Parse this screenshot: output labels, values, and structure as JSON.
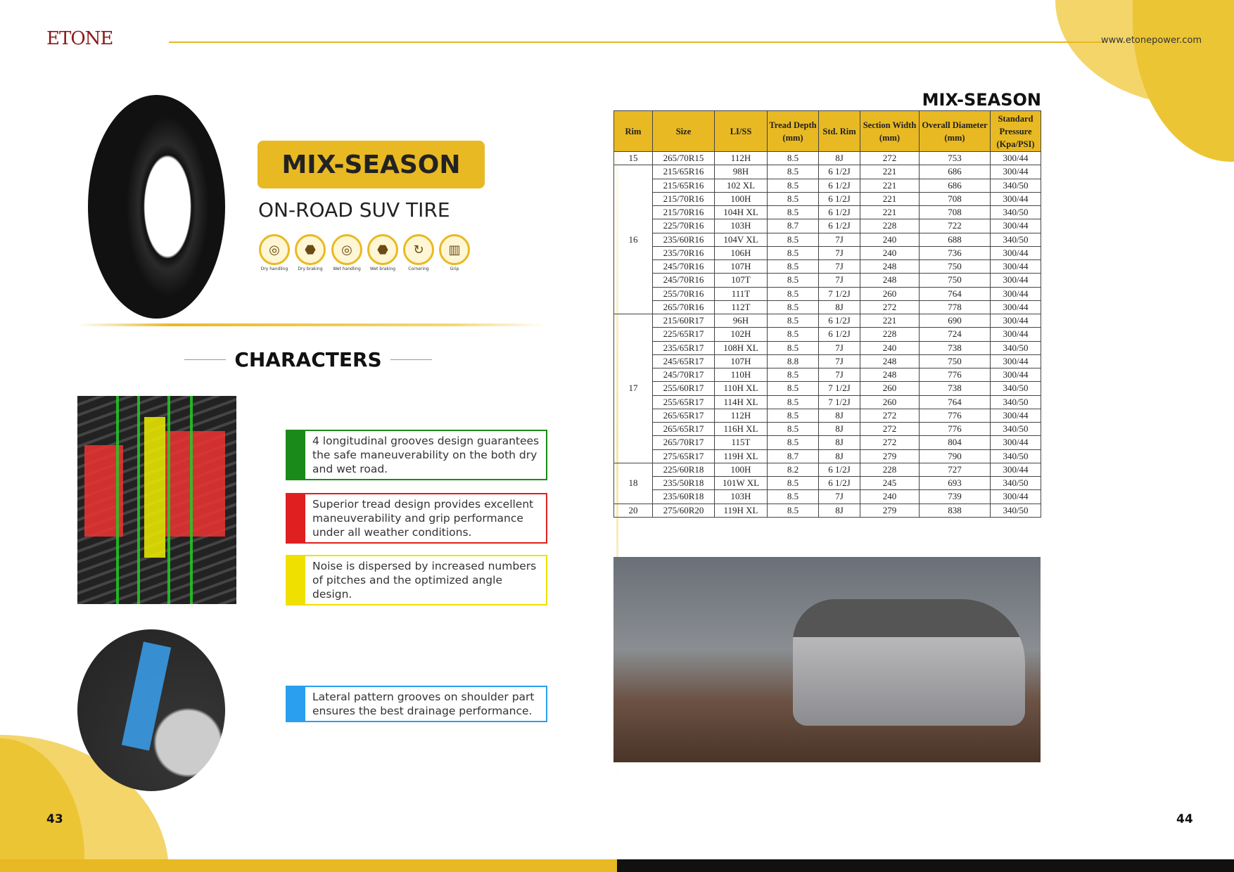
{
  "header": {
    "logo": "ETONE",
    "url": "www.etonepower.com"
  },
  "left": {
    "badge": "MIX-SEASON",
    "subtitle": "ON-ROAD SUV TIRE",
    "features": [
      {
        "icon": "steering-wheel-icon",
        "glyph": "◎",
        "label": "Dry handling"
      },
      {
        "icon": "stop-sign-icon",
        "glyph": "⬣",
        "label": "Dry braking"
      },
      {
        "icon": "wet-steering-icon",
        "glyph": "◎",
        "label": "Wet handling"
      },
      {
        "icon": "wet-stop-icon",
        "glyph": "⬣",
        "label": "Wet braking"
      },
      {
        "icon": "cornering-icon",
        "glyph": "↻",
        "label": "Cornering"
      },
      {
        "icon": "grip-icon",
        "glyph": "▥",
        "label": "Grip"
      }
    ],
    "characters_title": "CHARACTERS",
    "characters": [
      {
        "text": "4 longitudinal grooves design guarantees the safe maneuverability on the both dry and wet road.",
        "color": "#1a8a1a"
      },
      {
        "text": "Superior tread design provides excellent maneuverability and grip performance under all weather conditions.",
        "color": "#e02020"
      },
      {
        "text": "Noise is dispersed by increased numbers of pitches and the optimized angle design.",
        "color": "#f0e000"
      },
      {
        "text": "Lateral pattern grooves on shoulder part ensures the best drainage performance.",
        "color": "#2a9ff0"
      }
    ],
    "page_number": "43"
  },
  "right": {
    "title": "MIX-SEASON",
    "table": {
      "headers": [
        "Rim",
        "Size",
        "LI/SS",
        "Tread Depth (mm)",
        "Std. Rim",
        "Section Width (mm)",
        "Overall Diameter (mm)",
        "Standard Pressure (Kpa/PSI)"
      ],
      "groups": [
        {
          "rim": "15",
          "rows": [
            [
              "265/70R15",
              "112H",
              "8.5",
              "8J",
              "272",
              "753",
              "300/44"
            ]
          ]
        },
        {
          "rim": "16",
          "rows": [
            [
              "215/65R16",
              "98H",
              "8.5",
              "6 1/2J",
              "221",
              "686",
              "300/44"
            ],
            [
              "215/65R16",
              "102 XL",
              "8.5",
              "6 1/2J",
              "221",
              "686",
              "340/50"
            ],
            [
              "215/70R16",
              "100H",
              "8.5",
              "6 1/2J",
              "221",
              "708",
              "300/44"
            ],
            [
              "215/70R16",
              "104H XL",
              "8.5",
              "6 1/2J",
              "221",
              "708",
              "340/50"
            ],
            [
              "225/70R16",
              "103H",
              "8.7",
              "6 1/2J",
              "228",
              "722",
              "300/44"
            ],
            [
              "235/60R16",
              "104V XL",
              "8.5",
              "7J",
              "240",
              "688",
              "340/50"
            ],
            [
              "235/70R16",
              "106H",
              "8.5",
              "7J",
              "240",
              "736",
              "300/44"
            ],
            [
              "245/70R16",
              "107H",
              "8.5",
              "7J",
              "248",
              "750",
              "300/44"
            ],
            [
              "245/70R16",
              "107T",
              "8.5",
              "7J",
              "248",
              "750",
              "300/44"
            ],
            [
              "255/70R16",
              "111T",
              "8.5",
              "7 1/2J",
              "260",
              "764",
              "300/44"
            ],
            [
              "265/70R16",
              "112T",
              "8.5",
              "8J",
              "272",
              "778",
              "300/44"
            ]
          ]
        },
        {
          "rim": "17",
          "rows": [
            [
              "215/60R17",
              "96H",
              "8.5",
              "6 1/2J",
              "221",
              "690",
              "300/44"
            ],
            [
              "225/65R17",
              "102H",
              "8.5",
              "6 1/2J",
              "228",
              "724",
              "300/44"
            ],
            [
              "235/65R17",
              "108H XL",
              "8.5",
              "7J",
              "240",
              "738",
              "340/50"
            ],
            [
              "245/65R17",
              "107H",
              "8.8",
              "7J",
              "248",
              "750",
              "300/44"
            ],
            [
              "245/70R17",
              "110H",
              "8.5",
              "7J",
              "248",
              "776",
              "300/44"
            ],
            [
              "255/60R17",
              "110H XL",
              "8.5",
              "7 1/2J",
              "260",
              "738",
              "340/50"
            ],
            [
              "255/65R17",
              "114H XL",
              "8.5",
              "7 1/2J",
              "260",
              "764",
              "340/50"
            ],
            [
              "265/65R17",
              "112H",
              "8.5",
              "8J",
              "272",
              "776",
              "300/44"
            ],
            [
              "265/65R17",
              "116H XL",
              "8.5",
              "8J",
              "272",
              "776",
              "340/50"
            ],
            [
              "265/70R17",
              "115T",
              "8.5",
              "8J",
              "272",
              "804",
              "300/44"
            ],
            [
              "275/65R17",
              "119H XL",
              "8.7",
              "8J",
              "279",
              "790",
              "340/50"
            ]
          ]
        },
        {
          "rim": "18",
          "rows": [
            [
              "225/60R18",
              "100H",
              "8.2",
              "6 1/2J",
              "228",
              "727",
              "300/44"
            ],
            [
              "235/50R18",
              "101W XL",
              "8.5",
              "6 1/2J",
              "245",
              "693",
              "340/50"
            ],
            [
              "235/60R18",
              "103H",
              "8.5",
              "7J",
              "240",
              "739",
              "300/44"
            ]
          ]
        },
        {
          "rim": "20",
          "rows": [
            [
              "275/60R20",
              "119H XL",
              "8.5",
              "8J",
              "279",
              "838",
              "340/50"
            ]
          ]
        }
      ]
    },
    "page_number": "44"
  },
  "colors": {
    "accent": "#e8b923"
  }
}
